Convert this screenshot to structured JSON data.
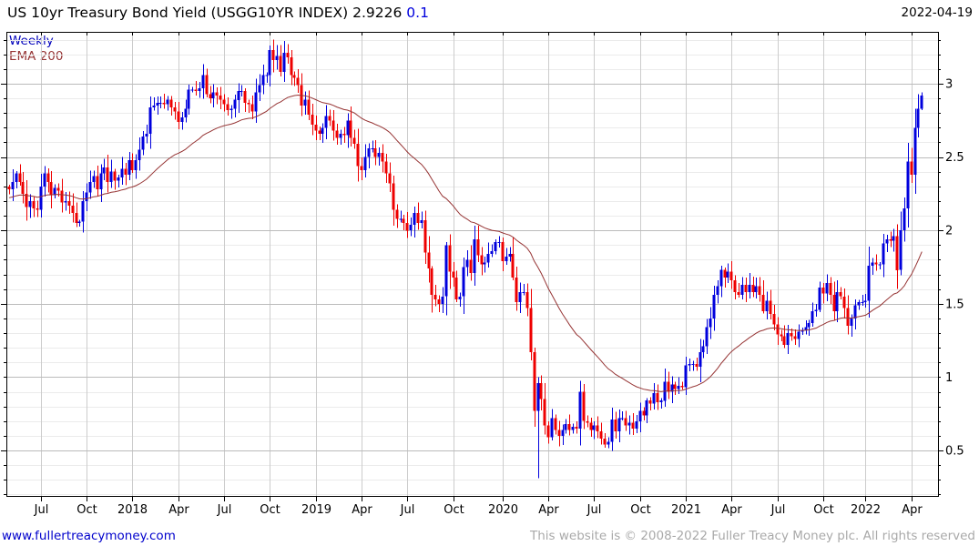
{
  "header": {
    "title": "US 10yr Treasury Bond Yield (USGG10YR INDEX) 2.9226",
    "change": "0.1",
    "date": "2022-04-19"
  },
  "legend": {
    "timeframe": "Weekly",
    "indicator": "EMA 200"
  },
  "footer": {
    "site": "www.fullertreacymoney.com",
    "copyright": "This website is © 2008-2022 Fuller Treacy Money plc. All rights reserved"
  },
  "colors": {
    "up_candle": "#0000dd",
    "down_candle": "#ee0000",
    "ema_line": "#963434",
    "grid_minor": "#ebebeb",
    "grid_major": "#bbbbbb",
    "grid_vertical": "#cccccc",
    "axis": "#000000",
    "title_change": "#0000dd",
    "link": "#0000cc",
    "copyright_gray": "#a9a9a9"
  },
  "chart_data": {
    "type": "candlestick",
    "title": "US 10yr Treasury Bond Yield (USGG10YR INDEX)",
    "symbol": "USGG10YR INDEX",
    "timeframe": "Weekly",
    "last_value": 2.9226,
    "change": 0.1,
    "as_of": "2022-04-19",
    "indicator": {
      "name": "EMA 200",
      "period_weeks": 40,
      "seed": 2.22
    },
    "y_axis": {
      "min": 0.19,
      "max": 3.3536,
      "major_ticks": [
        3,
        2.5,
        2,
        1.5,
        1,
        0.5
      ],
      "minor_step": 0.1,
      "position": "right"
    },
    "x_axis": {
      "ticks": [
        {
          "label": "Jul",
          "week": 9
        },
        {
          "label": "Oct",
          "week": 22
        },
        {
          "label": "2018",
          "week": 35
        },
        {
          "label": "Apr",
          "week": 48
        },
        {
          "label": "Jul",
          "week": 61
        },
        {
          "label": "Oct",
          "week": 74
        },
        {
          "label": "2019",
          "week": 87
        },
        {
          "label": "Apr",
          "week": 100
        },
        {
          "label": "Jul",
          "week": 113
        },
        {
          "label": "Oct",
          "week": 126
        },
        {
          "label": "2020",
          "week": 140
        },
        {
          "label": "Apr",
          "week": 153
        },
        {
          "label": "Jul",
          "week": 166
        },
        {
          "label": "Oct",
          "week": 179
        },
        {
          "label": "2021",
          "week": 192
        },
        {
          "label": "Apr",
          "week": 205
        },
        {
          "label": "Jul",
          "week": 218
        },
        {
          "label": "Oct",
          "week": 231
        },
        {
          "label": "2022",
          "week": 243
        },
        {
          "label": "Apr",
          "week": 256
        }
      ],
      "start": "2017-04-28",
      "end": "2022-04-19"
    },
    "first_open": 2.3,
    "weekly_closes": [
      2.28,
      2.33,
      2.39,
      2.33,
      2.25,
      2.16,
      2.2,
      2.15,
      2.14,
      2.3,
      2.39,
      2.33,
      2.24,
      2.29,
      2.27,
      2.19,
      2.2,
      2.17,
      2.12,
      2.05,
      2.06,
      2.2,
      2.26,
      2.33,
      2.37,
      2.28,
      2.39,
      2.43,
      2.33,
      2.4,
      2.34,
      2.36,
      2.42,
      2.38,
      2.48,
      2.41,
      2.48,
      2.55,
      2.64,
      2.66,
      2.84,
      2.85,
      2.87,
      2.87,
      2.86,
      2.89,
      2.84,
      2.81,
      2.74,
      2.77,
      2.83,
      2.96,
      2.96,
      2.95,
      2.97,
      3.06,
      2.93,
      2.9,
      2.94,
      2.92,
      2.89,
      2.86,
      2.82,
      2.83,
      2.89,
      2.95,
      2.95,
      2.87,
      2.86,
      2.81,
      2.94,
      2.99,
      3.06,
      3.06,
      3.23,
      3.16,
      3.19,
      3.08,
      3.21,
      3.18,
      3.06,
      3.04,
      2.99,
      2.85,
      2.89,
      2.79,
      2.72,
      2.68,
      2.66,
      2.7,
      2.78,
      2.75,
      2.68,
      2.63,
      2.66,
      2.65,
      2.75,
      2.63,
      2.59,
      2.44,
      2.41,
      2.5,
      2.56,
      2.56,
      2.5,
      2.53,
      2.47,
      2.39,
      2.32,
      2.14,
      2.08,
      2.08,
      2.05,
      2.0,
      2.04,
      2.12,
      2.05,
      2.07,
      1.85,
      1.74,
      1.56,
      1.53,
      1.5,
      1.55,
      1.9,
      1.72,
      1.68,
      1.53,
      1.55,
      1.75,
      1.8,
      1.71,
      1.94,
      1.83,
      1.77,
      1.78,
      1.84,
      1.86,
      1.92,
      1.92,
      1.79,
      1.82,
      1.84,
      1.68,
      1.51,
      1.58,
      1.58,
      1.47,
      1.17,
      0.77,
      0.96,
      0.85,
      0.67,
      0.59,
      0.72,
      0.64,
      0.6,
      0.64,
      0.68,
      0.64,
      0.66,
      0.65,
      0.9,
      0.7,
      0.69,
      0.64,
      0.67,
      0.63,
      0.58,
      0.54,
      0.56,
      0.71,
      0.63,
      0.72,
      0.72,
      0.67,
      0.69,
      0.65,
      0.7,
      0.77,
      0.74,
      0.84,
      0.82,
      0.89,
      0.83,
      0.84,
      0.97,
      0.9,
      0.95,
      0.92,
      0.94,
      0.93,
      1.08,
      1.09,
      1.09,
      1.07,
      1.17,
      1.21,
      1.34,
      1.4,
      1.56,
      1.62,
      1.73,
      1.68,
      1.72,
      1.66,
      1.58,
      1.56,
      1.63,
      1.58,
      1.63,
      1.58,
      1.62,
      1.56,
      1.45,
      1.52,
      1.43,
      1.36,
      1.29,
      1.28,
      1.22,
      1.3,
      1.28,
      1.26,
      1.31,
      1.32,
      1.34,
      1.37,
      1.45,
      1.46,
      1.61,
      1.57,
      1.64,
      1.56,
      1.45,
      1.58,
      1.55,
      1.47,
      1.35,
      1.4,
      1.49,
      1.51,
      1.51,
      1.52,
      1.76,
      1.78,
      1.77,
      1.77,
      1.91,
      1.94,
      1.93,
      1.96,
      1.73,
      2.0,
      2.15,
      2.47,
      2.38,
      2.7,
      2.83,
      2.92
    ],
    "wick_overrides": {
      "74": {
        "high": 3.26
      },
      "124": {
        "high": 1.92
      },
      "149": {
        "high": 1.2,
        "low": 0.66
      },
      "150": {
        "high": 1.0,
        "low": 0.31
      },
      "259": {
        "high": 2.94,
        "low": 2.82
      }
    }
  }
}
